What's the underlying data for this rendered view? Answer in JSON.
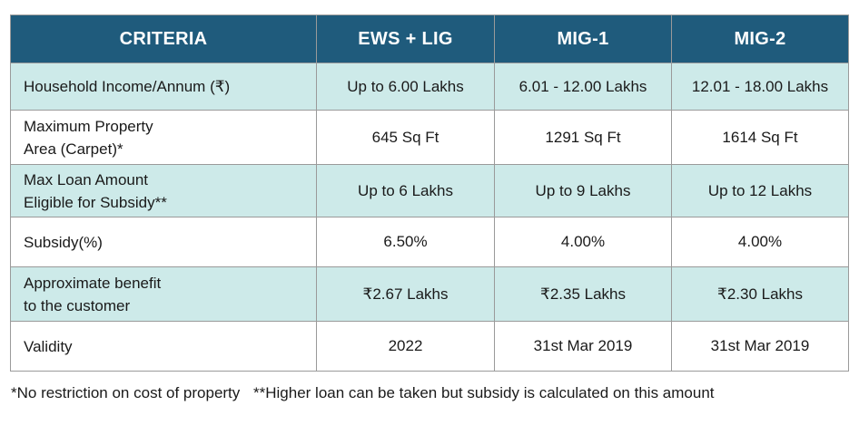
{
  "headers": [
    "CRITERIA",
    "EWS + LIG",
    "MIG-1",
    "MIG-2"
  ],
  "rows": [
    {
      "label_lines": [
        "Household Income/Annum (₹)"
      ],
      "values": [
        "Up to 6.00 Lakhs",
        "6.01 - 12.00 Lakhs",
        "12.01 - 18.00 Lakhs"
      ]
    },
    {
      "label_lines": [
        "Maximum Property",
        "Area (Carpet)*"
      ],
      "values": [
        "645 Sq Ft",
        "1291 Sq Ft",
        "1614 Sq Ft"
      ]
    },
    {
      "label_lines": [
        "Max Loan Amount",
        "Eligible for Subsidy**"
      ],
      "values": [
        "Up to 6 Lakhs",
        "Up to 9 Lakhs",
        "Up to 12 Lakhs"
      ]
    },
    {
      "label_lines": [
        "Subsidy(%)"
      ],
      "values": [
        "6.50%",
        "4.00%",
        "4.00%"
      ]
    },
    {
      "label_lines": [
        "Approximate benefit",
        "to the customer"
      ],
      "values": [
        "₹2.67 Lakhs",
        "₹2.35 Lakhs",
        "₹2.30 Lakhs"
      ]
    },
    {
      "label_lines": [
        "Validity"
      ],
      "values": [
        "2022",
        "31st Mar 2019",
        "31st Mar 2019"
      ]
    }
  ],
  "footnotes": {
    "first": "*No restriction on cost of property",
    "second": "**Higher loan can be taken but subsidy is calculated on this amount"
  },
  "colors": {
    "header_bg": "#1f5b7c",
    "alt_row_bg": "#cdeae9",
    "border": "#9a9a9a"
  }
}
